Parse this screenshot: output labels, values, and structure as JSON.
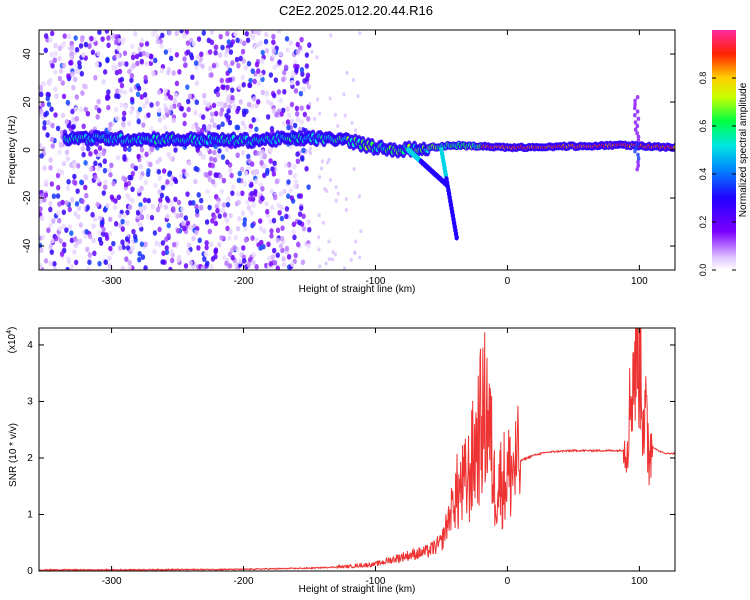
{
  "title": "C2E2.2025.012.20.44.R16",
  "colors": {
    "line": "#ee3333",
    "axis": "#000000",
    "background": "#ffffff",
    "colormap": [
      "#ffffff",
      "#7b00ff",
      "#2200ff",
      "#0088ff",
      "#00e8e0",
      "#00ff40",
      "#c8ff00",
      "#ffd000",
      "#ff2200",
      "#ff2aa0"
    ]
  },
  "chart_data": [
    {
      "type": "heatmap",
      "title": "C2E2.2025.012.20.44.R16",
      "xlabel": "Height of straight line (km)",
      "ylabel": "Frequency (Hz)",
      "xlim": [
        -355,
        127
      ],
      "ylim": [
        -50,
        50
      ],
      "xticks": [
        -300,
        -200,
        -100,
        0,
        100
      ],
      "yticks": [
        -40,
        -20,
        0,
        20,
        40
      ],
      "colorbar": {
        "label": "Normalized spectral amplitude",
        "range": [
          0,
          1
        ],
        "ticks": [
          "0.0",
          "0.2",
          "0.4",
          "0.6",
          "0.8"
        ],
        "tick_values": [
          0,
          0.2,
          0.4,
          0.6,
          0.8
        ]
      },
      "features": {
        "noise_region_x": [
          -355,
          -150
        ],
        "main_band": [
          {
            "x": -335,
            "f": 5
          },
          {
            "x": -200,
            "f": 4
          },
          {
            "x": -150,
            "f": 5
          },
          {
            "x": -120,
            "f": 4
          },
          {
            "x": -100,
            "f": 1
          },
          {
            "x": -80,
            "f": 0
          },
          {
            "x": -40,
            "f": 2
          },
          {
            "x": 0,
            "f": 1
          },
          {
            "x": 90,
            "f": 2
          },
          {
            "x": 127,
            "f": 1
          }
        ],
        "descending_branches": [
          {
            "from": [
              -75,
              0
            ],
            "to": [
              -45,
              -15
            ]
          },
          {
            "from": [
              -50,
              0
            ],
            "to": [
              -38,
              -38
            ]
          }
        ],
        "spike_near_x": 98
      }
    },
    {
      "type": "line",
      "title": "",
      "xlabel": "Height of straight line (km)",
      "ylabel": "SNR (10 * v/v)",
      "y_multiplier_label": "(x10",
      "y_multiplier_exp": "4",
      "y_multiplier_close": ")",
      "xlim": [
        -355,
        127
      ],
      "ylim": [
        0,
        4.3
      ],
      "xticks": [
        -300,
        -200,
        -100,
        0,
        100
      ],
      "yticks": [
        0,
        1,
        2,
        3,
        4
      ],
      "series": [
        {
          "values_note": "",
          "x": [
            -355,
            -300,
            -200,
            -150,
            -120,
            -100,
            -80,
            -60,
            -50,
            -45,
            -40,
            -30,
            -20,
            -15,
            -10,
            0,
            10,
            20,
            30,
            40,
            50,
            60,
            70,
            80,
            85,
            90,
            95,
            100,
            105,
            110,
            115,
            120,
            127
          ],
          "y": [
            0.02,
            0.02,
            0.03,
            0.05,
            0.08,
            0.12,
            0.25,
            0.35,
            0.5,
            0.9,
            1.3,
            1.6,
            2.6,
            2.9,
            1.5,
            1.7,
            1.95,
            2.05,
            2.1,
            2.12,
            2.13,
            2.13,
            2.13,
            2.13,
            2.13,
            2.15,
            3.5,
            4.3,
            2.3,
            2.2,
            2.12,
            2.08,
            2.08
          ]
        }
      ]
    }
  ]
}
